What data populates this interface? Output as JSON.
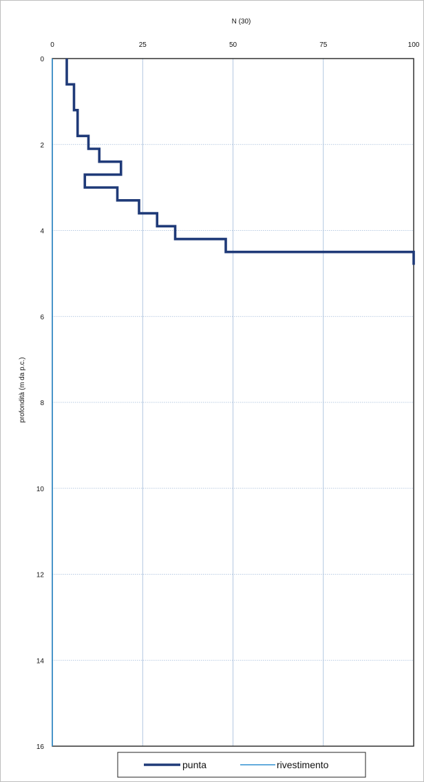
{
  "chart_data": {
    "type": "line",
    "title": "",
    "xlabel": "N (30)",
    "ylabel": "profondità (m da p.c.)",
    "xlim": [
      0,
      100
    ],
    "ylim": [
      0,
      16
    ],
    "y_inverted": true,
    "x_axis_position": "top",
    "x_ticks": [
      "0",
      "25",
      "50",
      "75",
      "100"
    ],
    "y_ticks": [
      "0",
      "2",
      "4",
      "6",
      "8",
      "10",
      "12",
      "14",
      "16"
    ],
    "grid": true,
    "legend": {
      "position": "bottom",
      "entries": [
        "punta",
        "rivestimento"
      ]
    },
    "colors": {
      "punta": "#1f3a78",
      "rivestimento": "#2f8fd0",
      "grid": "#9fb8d8"
    },
    "series": [
      {
        "name": "punta",
        "step_profile": [
          {
            "from_depth": 0.0,
            "to_depth": 0.6,
            "value": 4
          },
          {
            "from_depth": 0.6,
            "to_depth": 1.2,
            "value": 6
          },
          {
            "from_depth": 1.2,
            "to_depth": 1.8,
            "value": 7
          },
          {
            "from_depth": 1.8,
            "to_depth": 2.1,
            "value": 10
          },
          {
            "from_depth": 2.1,
            "to_depth": 2.4,
            "value": 13
          },
          {
            "from_depth": 2.4,
            "to_depth": 2.7,
            "value": 19
          },
          {
            "from_depth": 2.7,
            "to_depth": 3.0,
            "value": 9
          },
          {
            "from_depth": 3.0,
            "to_depth": 3.3,
            "value": 18
          },
          {
            "from_depth": 3.3,
            "to_depth": 3.6,
            "value": 24
          },
          {
            "from_depth": 3.6,
            "to_depth": 3.9,
            "value": 29
          },
          {
            "from_depth": 3.9,
            "to_depth": 4.2,
            "value": 34
          },
          {
            "from_depth": 4.2,
            "to_depth": 4.5,
            "value": 48
          },
          {
            "from_depth": 4.5,
            "to_depth": 4.8,
            "value": 100
          }
        ]
      },
      {
        "name": "rivestimento",
        "points": [
          {
            "value": 0,
            "depth": 0
          },
          {
            "value": 0,
            "depth": 16
          }
        ]
      }
    ]
  }
}
